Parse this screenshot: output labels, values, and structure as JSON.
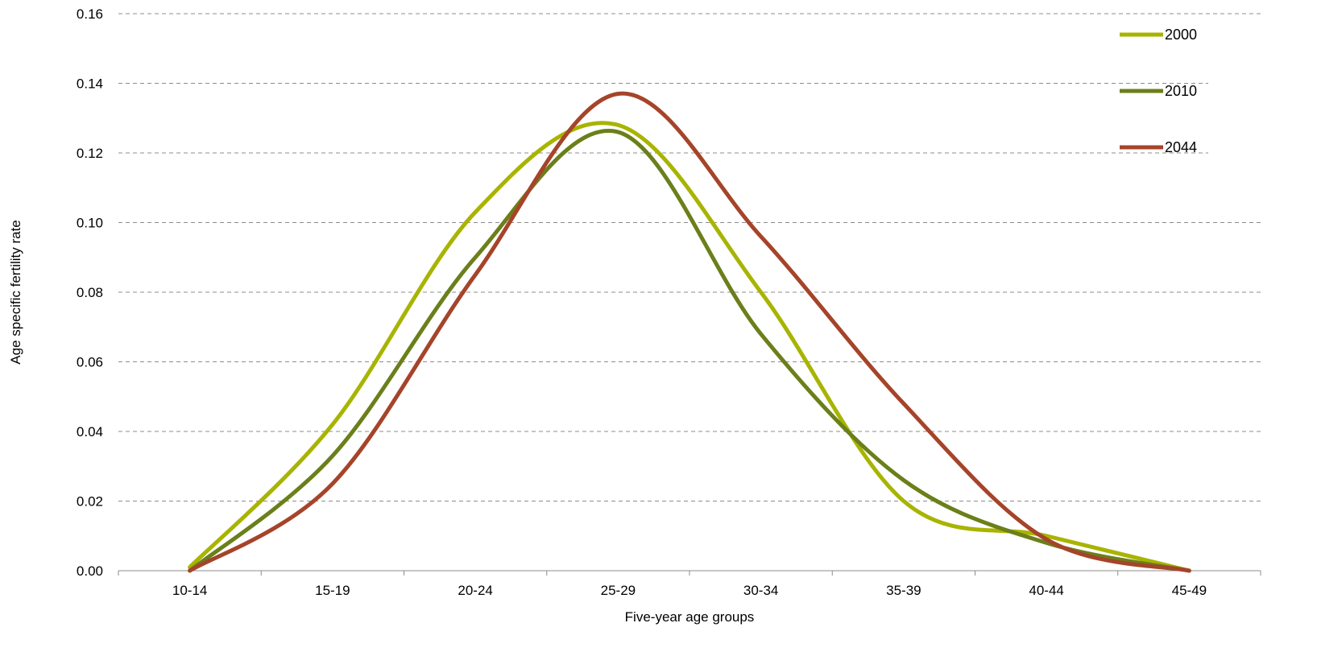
{
  "chart_data": {
    "type": "line",
    "smooth": true,
    "categories": [
      "10-14",
      "15-19",
      "20-24",
      "25-29",
      "30-34",
      "35-39",
      "40-44",
      "45-49"
    ],
    "series": [
      {
        "name": "2000",
        "color": "#a8b400",
        "values": [
          0.001,
          0.042,
          0.103,
          0.128,
          0.08,
          0.02,
          0.01,
          0.0
        ]
      },
      {
        "name": "2010",
        "color": "#6b7f1a",
        "values": [
          0.0,
          0.033,
          0.09,
          0.126,
          0.068,
          0.026,
          0.008,
          0.0
        ]
      },
      {
        "name": "2044",
        "color": "#a5442a",
        "values": [
          0.0,
          0.025,
          0.085,
          0.137,
          0.096,
          0.048,
          0.009,
          0.0
        ]
      }
    ],
    "xlabel": "Five-year age groups",
    "ylabel": "Age specific fertility rate",
    "ylim": [
      0,
      0.16
    ],
    "yticks": [
      "0.00",
      "0.02",
      "0.04",
      "0.06",
      "0.08",
      "0.10",
      "0.12",
      "0.14",
      "0.16"
    ],
    "grid": true,
    "legend_position": "top-right"
  }
}
